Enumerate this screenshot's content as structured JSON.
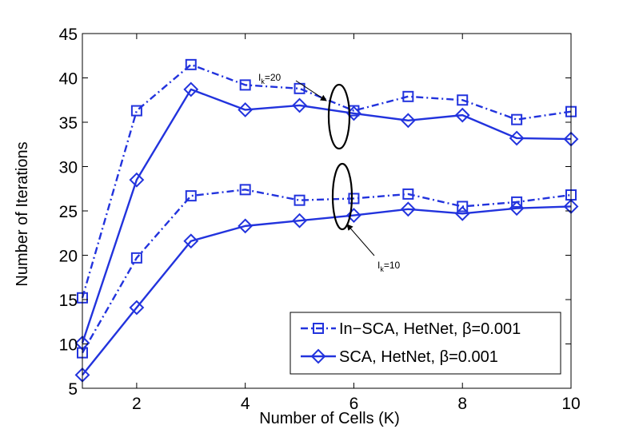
{
  "chart_data": {
    "type": "line",
    "title": "",
    "xlabel": "Number of Cells (K)",
    "ylabel": "Number of Iterations",
    "xlim": [
      1,
      10
    ],
    "ylim": [
      5,
      45
    ],
    "xticks": [
      2,
      4,
      6,
      8,
      10
    ],
    "yticks": [
      5,
      10,
      15,
      20,
      25,
      30,
      35,
      40,
      45
    ],
    "grid": false,
    "legend_position": "bottom-right",
    "x": [
      1,
      2,
      3,
      4,
      5,
      6,
      7,
      8,
      9,
      10
    ],
    "series": [
      {
        "name": "In−SCA, HetNet, β=0.001",
        "group": "I_k=20",
        "style": "dashdot",
        "marker": "square",
        "color": "#2233dd",
        "values": [
          15.2,
          36.3,
          41.5,
          39.2,
          38.8,
          36.3,
          37.9,
          37.5,
          35.3,
          36.2
        ]
      },
      {
        "name": "SCA, HetNet, β=0.001",
        "group": "I_k=20",
        "style": "solid",
        "marker": "diamond",
        "color": "#2233dd",
        "values": [
          10.1,
          28.5,
          38.7,
          36.4,
          36.9,
          36.0,
          35.2,
          35.8,
          33.2,
          33.1
        ]
      },
      {
        "name": "In−SCA, HetNet, β=0.001",
        "group": "I_k=10",
        "style": "dashdot",
        "marker": "square",
        "color": "#2233dd",
        "values": [
          9.0,
          19.7,
          26.7,
          27.4,
          26.2,
          26.4,
          26.9,
          25.5,
          26.0,
          26.8
        ]
      },
      {
        "name": "SCA, HetNet, β=0.001",
        "group": "I_k=10",
        "style": "solid",
        "marker": "diamond",
        "color": "#2233dd",
        "values": [
          6.5,
          14.1,
          21.6,
          23.3,
          23.9,
          24.5,
          25.2,
          24.7,
          25.3,
          25.5
        ]
      }
    ],
    "legend": [
      {
        "label": "In−SCA, HetNet, β=0.001",
        "style": "dashdot",
        "marker": "square"
      },
      {
        "label": "SCA, HetNet, β=0.001",
        "style": "solid",
        "marker": "diamond"
      }
    ],
    "annotations": [
      {
        "text": "I",
        "sub": "k",
        "suffix": "=20"
      },
      {
        "text": "I",
        "sub": "k",
        "suffix": "=10"
      }
    ]
  }
}
